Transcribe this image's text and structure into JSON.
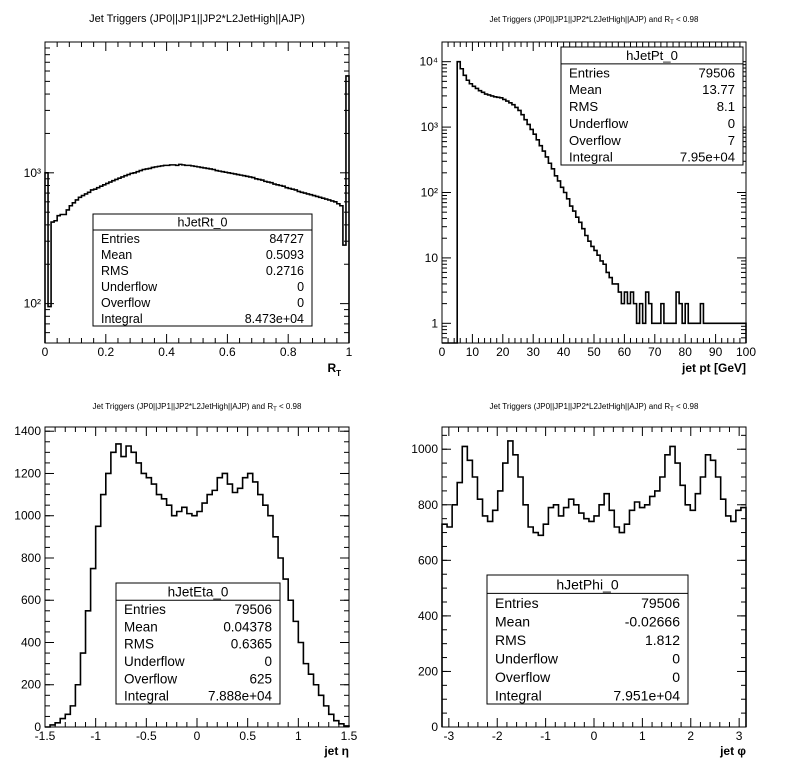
{
  "chart_data": [
    {
      "type": "bar",
      "title": "Jet Triggers (JP0||JP1||JP2*L2JetHigh||AJP)",
      "title_suffix": "",
      "xlabel": "R",
      "xlabel_sub": "T",
      "xlim": [
        0,
        1
      ],
      "ylim": [
        50,
        10000
      ],
      "log_y": true,
      "x_ticks": [
        0,
        0.2,
        0.4,
        0.6,
        0.8,
        1
      ],
      "x_tick_labels": [
        "0",
        "0.2",
        "0.4",
        "0.6",
        "0.8",
        "1"
      ],
      "y_ticks": [
        100,
        1000
      ],
      "y_tick_labels": [
        "10²",
        "10³"
      ],
      "bins": 100,
      "values": [
        1000,
        95,
        420,
        430,
        470,
        480,
        480,
        520,
        560,
        590,
        620,
        650,
        670,
        690,
        710,
        740,
        750,
        770,
        790,
        810,
        830,
        850,
        870,
        890,
        910,
        930,
        950,
        970,
        990,
        1000,
        1020,
        1040,
        1060,
        1070,
        1080,
        1100,
        1110,
        1120,
        1130,
        1140,
        1140,
        1150,
        1150,
        1140,
        1160,
        1150,
        1140,
        1140,
        1130,
        1120,
        1110,
        1100,
        1090,
        1080,
        1070,
        1060,
        1040,
        1030,
        1020,
        1010,
        1000,
        990,
        980,
        970,
        960,
        950,
        940,
        930,
        920,
        900,
        890,
        880,
        860,
        850,
        840,
        820,
        810,
        800,
        790,
        770,
        760,
        750,
        740,
        720,
        710,
        700,
        690,
        680,
        670,
        660,
        650,
        640,
        630,
        620,
        610,
        600,
        580,
        560,
        280,
        5500
      ],
      "stats": {
        "name": "hJetRt_0",
        "rows": [
          {
            "label": "Entries",
            "value": "84727"
          },
          {
            "label": "Mean",
            "value": "0.5093"
          },
          {
            "label": "RMS",
            "value": "0.2716"
          },
          {
            "label": "Underflow",
            "value": "0"
          },
          {
            "label": "Overflow",
            "value": "0"
          },
          {
            "label": "Integral",
            "value": "8.473e+04"
          }
        ]
      }
    },
    {
      "type": "bar",
      "title": "Jet Triggers (JP0||JP1||JP2*L2JetHigh||AJP) and R",
      "title_suffix": " < 0.98",
      "xlabel": "jet pt [GeV]",
      "xlabel_sub": "",
      "xlim": [
        0,
        100
      ],
      "ylim": [
        0.5,
        20000
      ],
      "log_y": true,
      "x_ticks": [
        0,
        10,
        20,
        30,
        40,
        50,
        60,
        70,
        80,
        90,
        100
      ],
      "x_tick_labels": [
        "0",
        "10",
        "20",
        "30",
        "40",
        "50",
        "60",
        "70",
        "80",
        "90",
        "100"
      ],
      "y_ticks": [
        1,
        10,
        100,
        1000,
        10000
      ],
      "y_tick_labels": [
        "1",
        "10",
        "10²",
        "10³",
        "10⁴"
      ],
      "bins": 100,
      "values": [
        0,
        0,
        0,
        0,
        0,
        10000,
        7800,
        6200,
        5200,
        4600,
        4200,
        3900,
        3600,
        3400,
        3200,
        3100,
        3000,
        2900,
        2850,
        2800,
        2650,
        2500,
        2350,
        2200,
        2000,
        1800,
        1550,
        1300,
        1100,
        920,
        780,
        640,
        520,
        430,
        350,
        280,
        230,
        180,
        150,
        120,
        100,
        80,
        62,
        52,
        42,
        35,
        28,
        22,
        18,
        15,
        13,
        11,
        9,
        8,
        6,
        5,
        4,
        4,
        3,
        2,
        3,
        2,
        3,
        2,
        1,
        2,
        1,
        3,
        2,
        1,
        1,
        1,
        2,
        1,
        1,
        1,
        1,
        3,
        2,
        1,
        2,
        1,
        1,
        1,
        1,
        2,
        1,
        1,
        1,
        1,
        1,
        1,
        1,
        1,
        1,
        1,
        1,
        1,
        1,
        1
      ],
      "stats": {
        "name": "hJetPt_0",
        "rows": [
          {
            "label": "Entries",
            "value": "79506"
          },
          {
            "label": "Mean",
            "value": "13.77"
          },
          {
            "label": "RMS",
            "value": "8.1"
          },
          {
            "label": "Underflow",
            "value": "0"
          },
          {
            "label": "Overflow",
            "value": "7"
          },
          {
            "label": "Integral",
            "value": "7.95e+04"
          }
        ]
      }
    },
    {
      "type": "bar",
      "title": "Jet Triggers (JP0||JP1||JP2*L2JetHigh||AJP) and R",
      "title_suffix": " < 0.98",
      "xlabel": "jet η",
      "xlabel_sub": "",
      "xlim": [
        -1.5,
        1.5
      ],
      "ylim": [
        0,
        1420
      ],
      "log_y": false,
      "x_ticks": [
        -1.5,
        -1,
        -0.5,
        0,
        0.5,
        1,
        1.5
      ],
      "x_tick_labels": [
        "-1.5",
        "-1",
        "-0.5",
        "0",
        "0.5",
        "1",
        "1.5"
      ],
      "y_ticks": [
        0,
        200,
        400,
        600,
        800,
        1000,
        1200,
        1400
      ],
      "y_tick_labels": [
        "0",
        "200",
        "400",
        "600",
        "800",
        "1000",
        "1200",
        "1400"
      ],
      "bins": 60,
      "values": [
        0,
        10,
        20,
        40,
        60,
        100,
        200,
        350,
        550,
        750,
        950,
        1100,
        1200,
        1300,
        1340,
        1280,
        1330,
        1300,
        1250,
        1200,
        1180,
        1150,
        1100,
        1080,
        1050,
        1000,
        1020,
        1040,
        1010,
        1000,
        1020,
        1060,
        1100,
        1120,
        1180,
        1200,
        1150,
        1110,
        1130,
        1180,
        1200,
        1160,
        1100,
        1050,
        1000,
        900,
        800,
        700,
        600,
        500,
        400,
        300,
        250,
        200,
        150,
        100,
        60,
        30,
        15,
        5
      ],
      "stats": {
        "name": "hJetEta_0",
        "rows": [
          {
            "label": "Entries",
            "value": "79506"
          },
          {
            "label": "Mean",
            "value": "0.04378"
          },
          {
            "label": "RMS",
            "value": "0.6365"
          },
          {
            "label": "Underflow",
            "value": "0"
          },
          {
            "label": "Overflow",
            "value": "625"
          },
          {
            "label": "Integral",
            "value": "7.888e+04"
          }
        ]
      }
    },
    {
      "type": "bar",
      "title": "Jet Triggers (JP0||JP1||JP2*L2JetHigh||AJP) and R",
      "title_suffix": " < 0.98",
      "xlabel": "jet φ",
      "xlabel_sub": "",
      "xlim": [
        -3.1416,
        3.1416
      ],
      "ylim": [
        0,
        1080
      ],
      "log_y": false,
      "x_ticks": [
        -3,
        -2,
        -1,
        0,
        1,
        2,
        3
      ],
      "x_tick_labels": [
        "-3",
        "-2",
        "-1",
        "0",
        "1",
        "2",
        "3"
      ],
      "y_ticks": [
        0,
        200,
        400,
        600,
        800,
        1000
      ],
      "y_tick_labels": [
        "0",
        "200",
        "400",
        "600",
        "800",
        "1000"
      ],
      "bins": 60,
      "values": [
        730,
        720,
        800,
        880,
        1010,
        960,
        900,
        820,
        760,
        740,
        780,
        850,
        950,
        1030,
        980,
        900,
        800,
        720,
        700,
        690,
        730,
        790,
        800,
        760,
        790,
        820,
        800,
        770,
        750,
        740,
        760,
        800,
        840,
        780,
        720,
        700,
        730,
        780,
        810,
        790,
        800,
        830,
        850,
        900,
        980,
        1010,
        950,
        870,
        800,
        780,
        840,
        900,
        980,
        960,
        900,
        820,
        760,
        740,
        780,
        790
      ],
      "stats": {
        "name": "hJetPhi_0",
        "rows": [
          {
            "label": "Entries",
            "value": "79506"
          },
          {
            "label": "Mean",
            "value": "-0.02666"
          },
          {
            "label": "RMS",
            "value": "1.812"
          },
          {
            "label": "Underflow",
            "value": "0"
          },
          {
            "label": "Overflow",
            "value": "0"
          },
          {
            "label": "Integral",
            "value": "7.951e+04"
          }
        ]
      }
    }
  ]
}
